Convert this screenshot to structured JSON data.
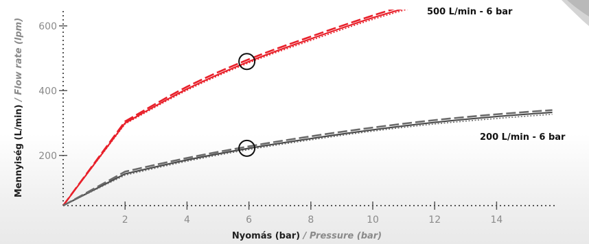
{
  "chart_data": {
    "type": "line",
    "xlabel": {
      "main": "Nyomás (bar)",
      "sub": " / Pressure (bar)"
    },
    "ylabel": {
      "main": "Mennyiség (L/min)",
      "sub": " / Flow rate (lpm)"
    },
    "xlim": [
      0,
      15.8
    ],
    "ylim": [
      45,
      665
    ],
    "x_ticks": [
      2,
      4,
      6,
      8,
      10,
      12,
      14
    ],
    "y_ticks": [
      200,
      400,
      600
    ],
    "grid": false,
    "series": [
      {
        "name": "500 L/min - 6 bar",
        "color": "#e8202a",
        "style": "solid",
        "x": [
          0,
          2,
          4,
          6,
          8,
          10,
          12
        ],
        "y": [
          45,
          300,
          405,
          490,
          560,
          625,
          680
        ]
      },
      {
        "name": "",
        "color": "#e8202a",
        "style": "dashed",
        "x": [
          0,
          2,
          4,
          6,
          8,
          10,
          12
        ],
        "y": [
          45,
          305,
          412,
          497,
          567,
          632,
          690
        ]
      },
      {
        "name": "",
        "color": "#e8202a",
        "style": "dotted",
        "x": [
          0,
          2,
          4,
          6,
          8,
          10,
          12
        ],
        "y": [
          45,
          297,
          401,
          486,
          555,
          620,
          675
        ]
      },
      {
        "name": "200 L/min - 6 bar",
        "color": "#4a4a4a",
        "style": "solid",
        "x": [
          0,
          2,
          4,
          6,
          8,
          10,
          12,
          14,
          15.8
        ],
        "y": [
          45,
          143,
          186,
          222,
          252,
          279,
          302,
          320,
          333
        ]
      },
      {
        "name": "",
        "color": "#6a6a6a",
        "style": "dashed",
        "x": [
          0,
          2,
          4,
          6,
          8,
          10,
          12,
          14,
          15.8
        ],
        "y": [
          45,
          150,
          192,
          228,
          259,
          286,
          309,
          327,
          340
        ]
      },
      {
        "name": "",
        "color": "#6a6a6a",
        "style": "dotted",
        "x": [
          0,
          2,
          4,
          6,
          8,
          10,
          12,
          14,
          15.8
        ],
        "y": [
          45,
          139,
          182,
          218,
          248,
          275,
          297,
          314,
          327
        ]
      }
    ],
    "markers": [
      {
        "series": "500 L/min - 6 bar",
        "x": 6,
        "y": 490,
        "shape": "open-circle"
      },
      {
        "series": "200 L/min - 6 bar",
        "x": 6,
        "y": 222,
        "shape": "open-circle"
      }
    ]
  }
}
